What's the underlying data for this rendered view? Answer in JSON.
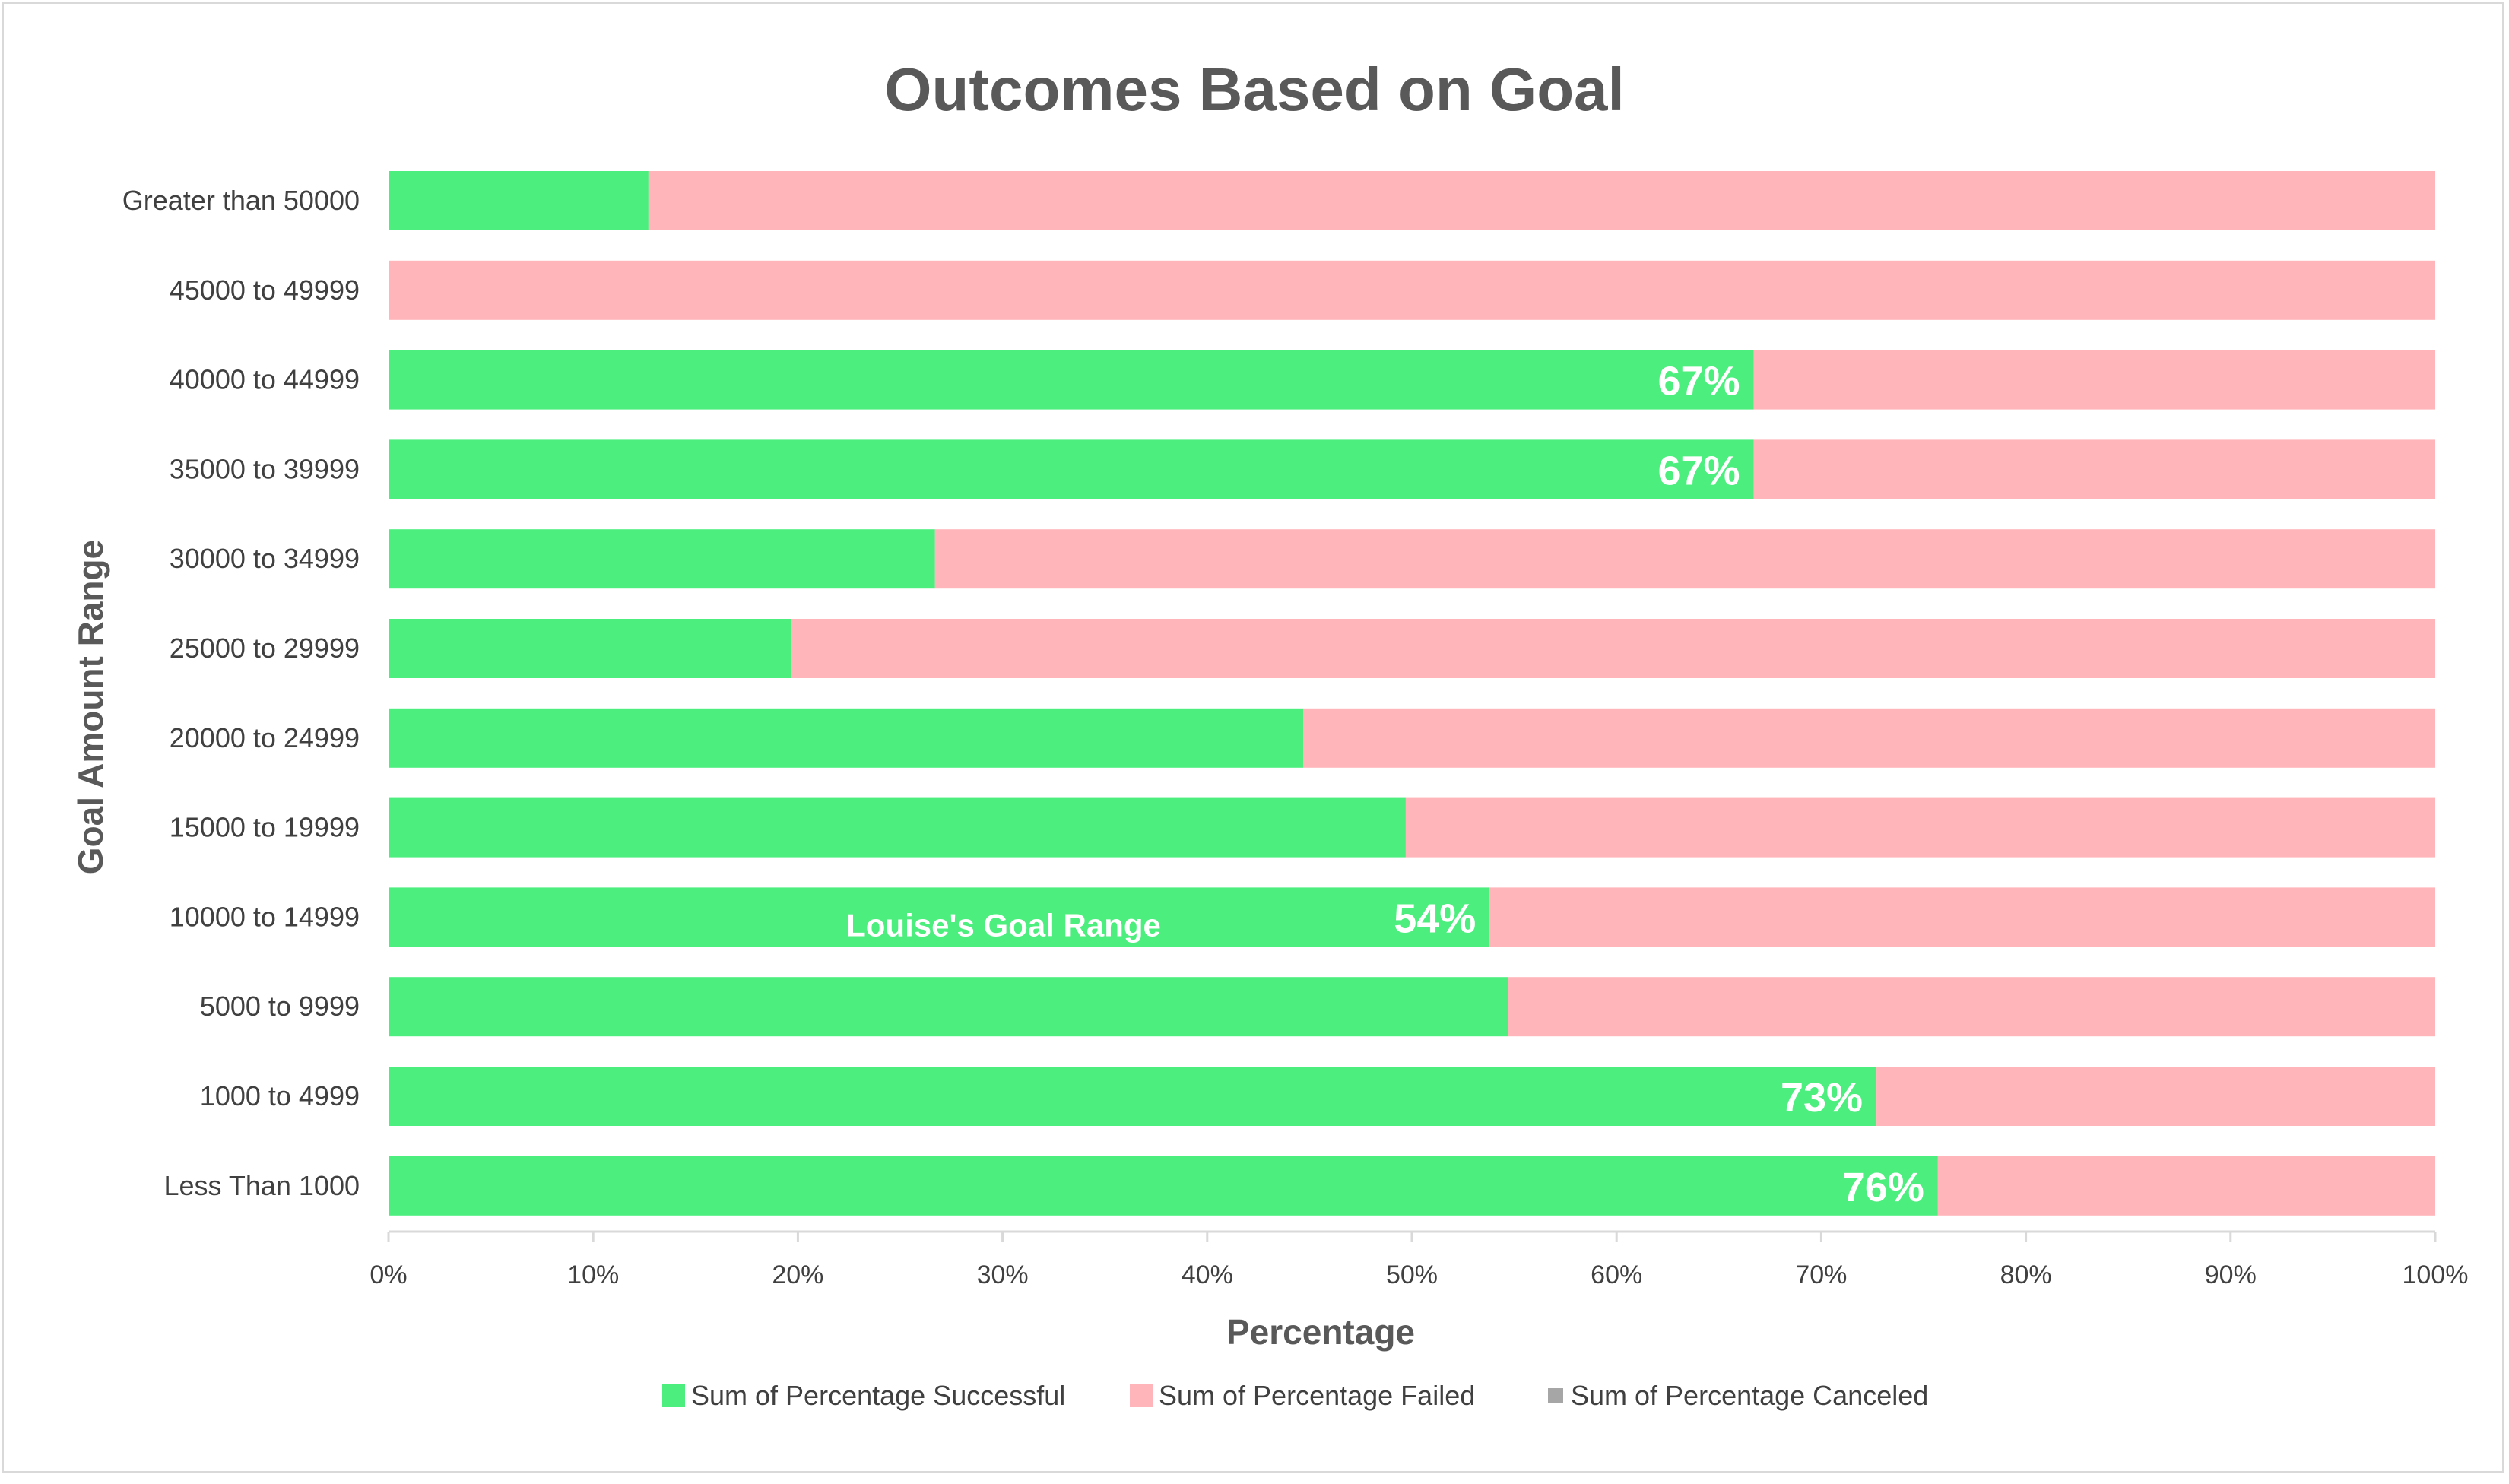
{
  "chart_data": {
    "type": "bar",
    "orientation": "horizontal",
    "stacked": "percent",
    "title": "Outcomes Based on Goal",
    "xlabel": "Percentage",
    "ylabel": "Goal Amount Range",
    "xlim": [
      0,
      100
    ],
    "xticks": [
      "0%",
      "10%",
      "20%",
      "30%",
      "40%",
      "50%",
      "60%",
      "70%",
      "80%",
      "90%",
      "100%"
    ],
    "categories": [
      "Greater than 50000",
      "45000 to 49999",
      "40000 to 44999",
      "35000 to 39999",
      "30000 to 34999",
      "25000 to 29999",
      "20000 to 24999",
      "15000 to 19999",
      "10000 to 14999",
      "5000 to 9999",
      "1000 to 4999",
      "Less Than 1000"
    ],
    "series": [
      {
        "name": "Sum of Percentage Successful",
        "color": "#4cee7e",
        "values": [
          12.7,
          0,
          66.7,
          66.7,
          26.7,
          19.7,
          44.7,
          49.7,
          53.8,
          54.7,
          72.7,
          75.7
        ]
      },
      {
        "name": "Sum of Percentage Failed",
        "color": "#ffb5b9",
        "values": [
          87.3,
          100,
          33.3,
          33.3,
          73.3,
          80.3,
          55.3,
          50.3,
          46.2,
          45.3,
          27.3,
          24.3
        ]
      },
      {
        "name": "Sum of Percentage Canceled",
        "color": "#a6a6a6",
        "values": [
          0,
          0,
          0,
          0,
          0,
          0,
          0,
          0,
          0,
          0,
          0,
          0
        ]
      }
    ],
    "data_labels": [
      {
        "category_index": 2,
        "text": "67%"
      },
      {
        "category_index": 3,
        "text": "67%"
      },
      {
        "category_index": 8,
        "text": "54%"
      },
      {
        "category_index": 10,
        "text": "73%"
      },
      {
        "category_index": 11,
        "text": "76%"
      }
    ],
    "annotations": [
      {
        "category_index": 8,
        "text": "Louise's Goal Range"
      }
    ],
    "legend_position": "bottom",
    "grid": false
  }
}
